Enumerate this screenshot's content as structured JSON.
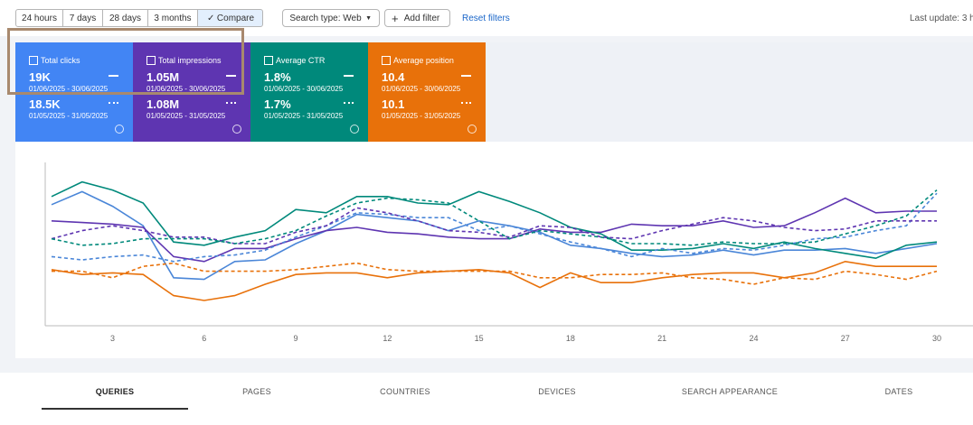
{
  "toolbar": {
    "date_ranges": [
      "24 hours",
      "7 days",
      "28 days",
      "3 months",
      "Compare"
    ],
    "search_type": "Search type: Web",
    "add_filter": "Add filter",
    "reset_filters": "Reset filters",
    "last_update": "Last update: 3 h"
  },
  "metrics": [
    {
      "label": "Total clicks",
      "value": "19K",
      "period": "01/06/2025 - 30/06/2025",
      "prev_value": "18.5K",
      "prev_period": "01/05/2025 - 31/05/2025",
      "color": "#4285f4"
    },
    {
      "label": "Total impressions",
      "value": "1.05M",
      "period": "01/06/2025 - 30/06/2025",
      "prev_value": "1.08M",
      "prev_period": "01/05/2025 - 31/05/2025",
      "color": "#5e35b1"
    },
    {
      "label": "Average CTR",
      "value": "1.8%",
      "period": "01/06/2025 - 30/06/2025",
      "prev_value": "1.7%",
      "prev_period": "01/05/2025 - 31/05/2025",
      "color": "#00897b"
    },
    {
      "label": "Average position",
      "value": "10.4",
      "period": "01/06/2025 - 30/06/2025",
      "prev_value": "10.1",
      "prev_period": "01/05/2025 - 31/05/2025",
      "color": "#e8710a"
    }
  ],
  "chart_data": {
    "type": "line",
    "x": [
      1,
      2,
      3,
      4,
      5,
      6,
      7,
      8,
      9,
      10,
      11,
      12,
      13,
      14,
      15,
      16,
      17,
      18,
      19,
      20,
      21,
      22,
      23,
      24,
      25,
      26,
      27,
      28,
      29,
      30
    ],
    "xlim": [
      1,
      30
    ],
    "xticks": [
      3,
      6,
      9,
      12,
      15,
      18,
      21,
      24,
      27,
      30
    ],
    "ylim": [
      0,
      100
    ],
    "series": [
      {
        "color": "#4a86d8",
        "dashed": false,
        "values": [
          74,
          82,
          73,
          61,
          29,
          28,
          39,
          40,
          50,
          58,
          68,
          66,
          64,
          58,
          64,
          61,
          57,
          49,
          47,
          44,
          42,
          43,
          46,
          43,
          46,
          46,
          47,
          44,
          47,
          50
        ]
      },
      {
        "color": "#5e35b1",
        "dashed": false,
        "values": [
          64,
          63,
          62,
          60,
          42,
          39,
          47,
          47,
          53,
          58,
          60,
          57,
          56,
          54,
          53,
          53,
          59,
          57,
          57,
          62,
          61,
          61,
          64,
          60,
          61,
          69,
          78,
          69,
          70,
          70
        ]
      },
      {
        "color": "#00897b",
        "dashed": false,
        "values": [
          79,
          88,
          83,
          75,
          51,
          49,
          54,
          58,
          71,
          69,
          79,
          79,
          75,
          74,
          82,
          76,
          69,
          60,
          56,
          46,
          46,
          47,
          50,
          47,
          51,
          47,
          44,
          41,
          49,
          51
        ]
      },
      {
        "color": "#e8710a",
        "dashed": false,
        "values": [
          34,
          31,
          32,
          31,
          18,
          15,
          18,
          25,
          31,
          32,
          32,
          29,
          32,
          33,
          34,
          32,
          23,
          32,
          26,
          26,
          29,
          31,
          32,
          32,
          29,
          32,
          39,
          36,
          36,
          36
        ]
      },
      {
        "color": "#4a86d8",
        "dashed": true,
        "values": [
          42,
          40,
          42,
          43,
          39,
          42,
          43,
          46,
          54,
          61,
          69,
          68,
          66,
          66,
          58,
          61,
          56,
          51,
          47,
          42,
          47,
          44,
          47,
          46,
          49,
          53,
          54,
          58,
          61,
          81
        ]
      },
      {
        "color": "#5e35b1",
        "dashed": true,
        "values": [
          53,
          58,
          61,
          58,
          54,
          54,
          50,
          50,
          57,
          61,
          72,
          69,
          64,
          58,
          57,
          54,
          61,
          60,
          54,
          53,
          58,
          62,
          66,
          64,
          60,
          58,
          59,
          64,
          64,
          64
        ]
      },
      {
        "color": "#00897b",
        "dashed": true,
        "values": [
          53,
          49,
          50,
          53,
          53,
          53,
          50,
          53,
          58,
          67,
          75,
          78,
          77,
          75,
          64,
          53,
          58,
          56,
          54,
          50,
          50,
          49,
          51,
          50,
          50,
          51,
          56,
          61,
          67,
          83
        ]
      },
      {
        "color": "#e8710a",
        "dashed": true,
        "values": [
          33,
          33,
          29,
          36,
          38,
          33,
          33,
          33,
          34,
          36,
          38,
          34,
          33,
          33,
          33,
          33,
          29,
          29,
          31,
          31,
          32,
          29,
          28,
          25,
          29,
          28,
          33,
          31,
          28,
          33
        ]
      }
    ]
  },
  "tabs": [
    "QUERIES",
    "PAGES",
    "COUNTRIES",
    "DEVICES",
    "SEARCH APPEARANCE",
    "DATES"
  ]
}
